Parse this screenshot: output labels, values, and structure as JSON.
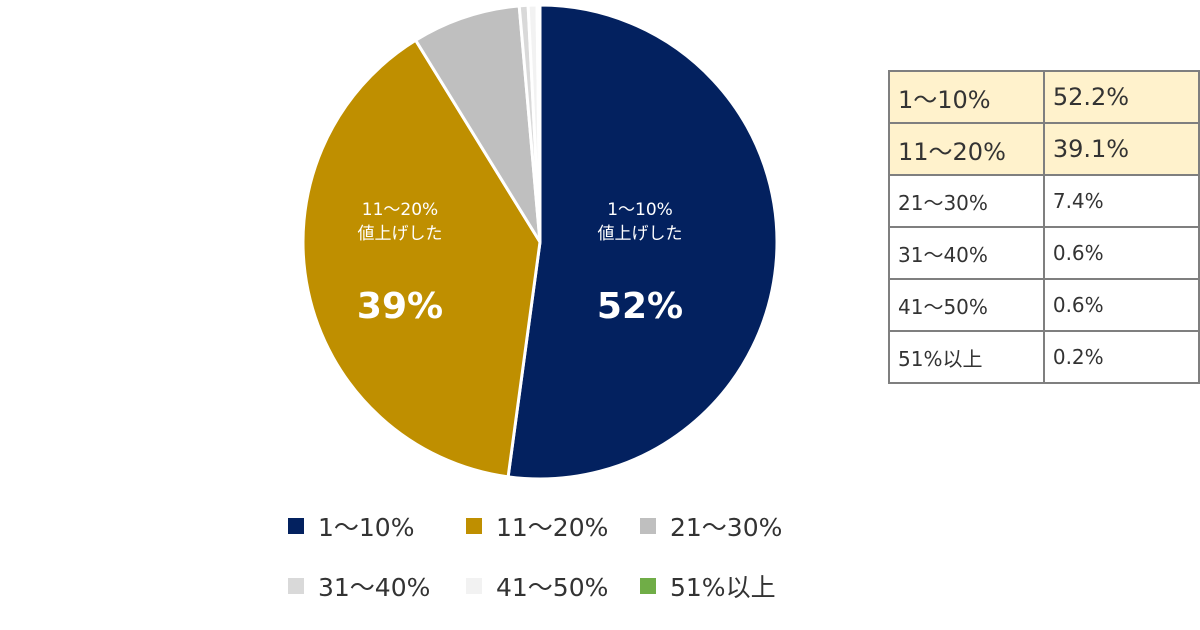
{
  "chart_data": {
    "type": "pie",
    "start": "12 o'clock, clockwise",
    "categories": [
      "1〜10%",
      "11〜20%",
      "21〜30%",
      "31〜40%",
      "41〜50%",
      "51%以上"
    ],
    "values": [
      52.2,
      39.1,
      7.4,
      0.6,
      0.6,
      0.2
    ],
    "colors": [
      "#03215f",
      "#bf8f00",
      "#bfbfbf",
      "#d9d9d9",
      "#f2f2f2",
      "#70ad47"
    ],
    "slice_labels": [
      {
        "line1": "1〜10%",
        "line2": "値上げした",
        "value": "52%"
      },
      {
        "line1": "11〜20%",
        "line2": "値上げした",
        "value": "39%"
      }
    ],
    "legend_placement": "bottom"
  },
  "table": {
    "rows": [
      {
        "label": "1〜10%",
        "value": "52.2%",
        "highlight": true
      },
      {
        "label": "11〜20%",
        "value": "39.1%",
        "highlight": true
      },
      {
        "label": "21〜30%",
        "value": "7.4%"
      },
      {
        "label": "31〜40%",
        "value": "0.6%"
      },
      {
        "label": "41〜50%",
        "value": "0.6%"
      },
      {
        "label": "51%以上",
        "value": "0.2%"
      }
    ],
    "highlight_color": "#fff2cc"
  }
}
